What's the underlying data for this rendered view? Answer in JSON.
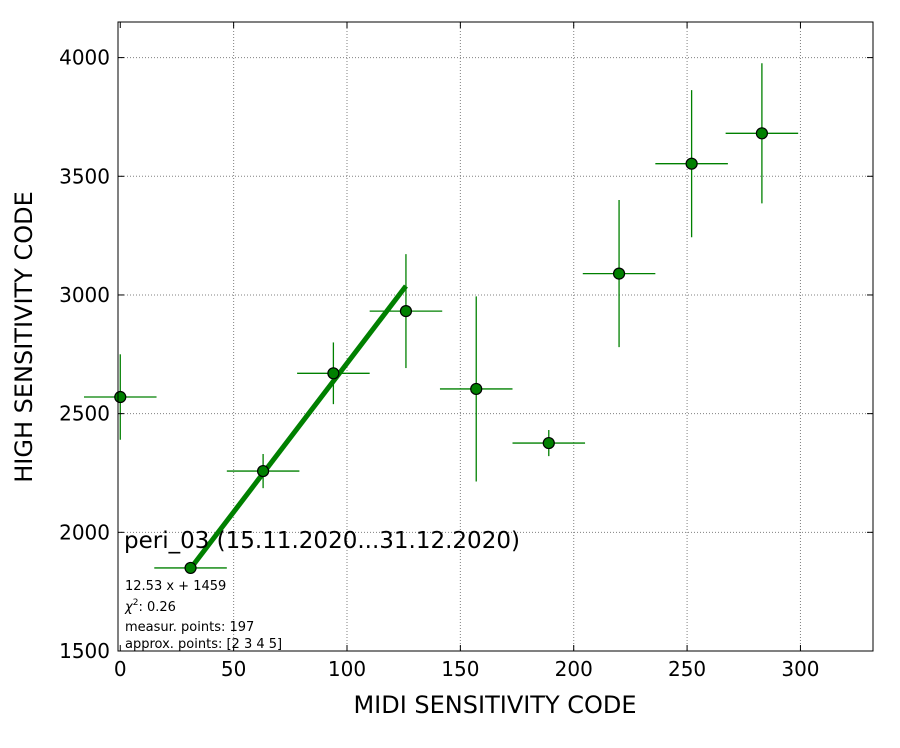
{
  "chart_data": {
    "type": "scatter",
    "xlabel": "MIDI SENSITIVITY CODE",
    "ylabel": "HIGH SENSITIVITY CODE",
    "xlim": [
      -1,
      332
    ],
    "ylim": [
      1500,
      4150
    ],
    "xticks": [
      0,
      50,
      100,
      150,
      200,
      250,
      300
    ],
    "yticks": [
      1500,
      2000,
      2500,
      3000,
      3500,
      4000
    ],
    "grid": true,
    "colors": {
      "marker": "#008000",
      "edge": "#000000",
      "fit": "#008000",
      "grid": "#808080"
    },
    "points": [
      {
        "x": 0,
        "y": 2570,
        "xerr": 16,
        "yerr": 180
      },
      {
        "x": 31,
        "y": 1850,
        "xerr": 16,
        "yerr": 25
      },
      {
        "x": 63,
        "y": 2258,
        "xerr": 16,
        "yerr": 72
      },
      {
        "x": 94,
        "y": 2670,
        "xerr": 16,
        "yerr": 130
      },
      {
        "x": 126,
        "y": 2932,
        "xerr": 16,
        "yerr": 240
      },
      {
        "x": 157,
        "y": 2604,
        "xerr": 16,
        "yerr": 390
      },
      {
        "x": 189,
        "y": 2376,
        "xerr": 16,
        "yerr": 55
      },
      {
        "x": 220,
        "y": 3090,
        "xerr": 16,
        "yerr": 310
      },
      {
        "x": 252,
        "y": 3553,
        "xerr": 16,
        "yerr": 310
      },
      {
        "x": 283,
        "y": 3681,
        "xerr": 16,
        "yerr": 295
      }
    ],
    "fit_line": {
      "slope": 12.53,
      "intercept": 1459,
      "x_range": [
        31,
        126
      ]
    },
    "annotations": {
      "title": "peri_03 (15.11.2020...31.12.2020)",
      "equation": "12.53 x + 1459",
      "chi2_label": "χ",
      "chi2_sup": "2",
      "chi2_value": ": 0.26",
      "measur_points": "measur. points: 197",
      "approx_points": "approx. points: [2 3 4 5]"
    }
  }
}
